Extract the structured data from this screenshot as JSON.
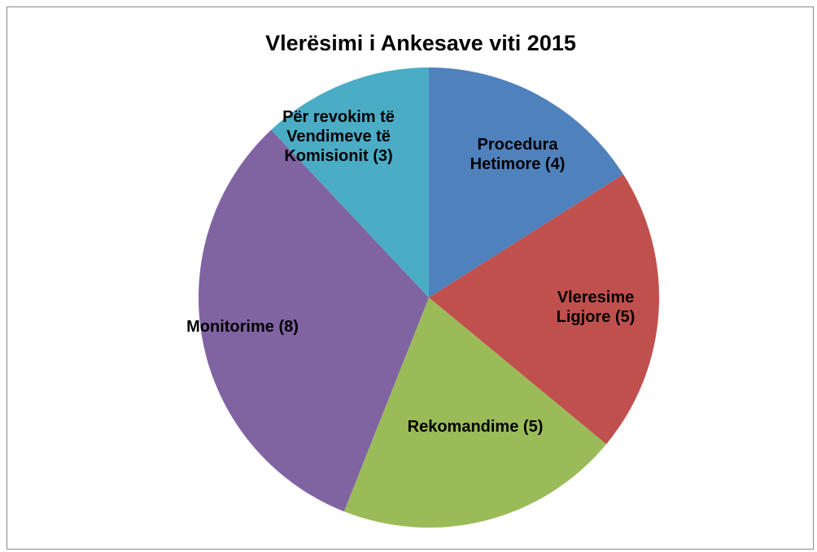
{
  "chart_data": {
    "type": "pie",
    "title": "Vlerësimi i Ankesave viti 2015",
    "categories": [
      "Procedura Hetimore",
      "Vleresime Ligjore",
      "Rekomandime",
      "Monitorime",
      "Për revokim të Vendimeve të Komisionit"
    ],
    "values": [
      4,
      5,
      5,
      8,
      3
    ],
    "value_labels": [
      "(4)",
      "(5)",
      "(5)",
      "(8)",
      "(3)"
    ],
    "colors": [
      "#4f81bd",
      "#c0504d",
      "#9bbb59",
      "#8064a2",
      "#4bacc6"
    ]
  }
}
